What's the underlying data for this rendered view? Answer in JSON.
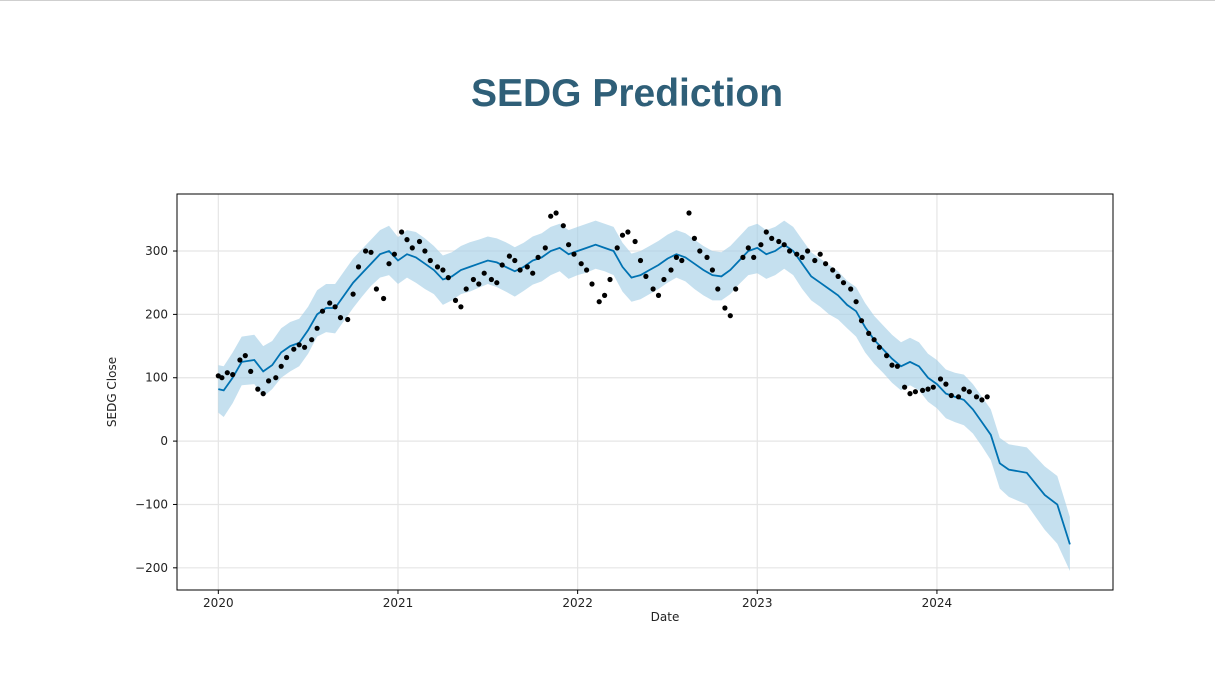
{
  "page": {
    "title": "SEDG Prediction"
  },
  "colors": {
    "title": "#2f5f78",
    "forecast_line": "#0072B2",
    "uncertainty_band": "#a6cfe7",
    "observed_points": "#000000",
    "grid": "#e5e5e5"
  },
  "chart_data": {
    "type": "line",
    "title": "",
    "xlabel": "Date",
    "ylabel": "SEDG Close",
    "x_tick_labels": [
      "2020",
      "2021",
      "2022",
      "2023",
      "2024"
    ],
    "y_tick_labels": [
      "300",
      "200",
      "100",
      "0",
      "−100",
      "−200"
    ],
    "y_ticks": [
      300,
      200,
      100,
      0,
      -100,
      -200
    ],
    "x_ticks": [
      2020.0,
      2021.0,
      2022.0,
      2023.0,
      2024.0
    ],
    "xlim": [
      2019.77,
      2024.98
    ],
    "ylim": [
      -235,
      390
    ],
    "grid": true,
    "series": [
      {
        "kind": "forecast",
        "x": [
          2020.0,
          2020.03,
          2020.08,
          2020.13,
          2020.2,
          2020.25,
          2020.3,
          2020.35,
          2020.4,
          2020.45,
          2020.5,
          2020.55,
          2020.6,
          2020.65,
          2020.7,
          2020.75,
          2020.8,
          2020.85,
          2020.9,
          2020.95,
          2021.0,
          2021.05,
          2021.1,
          2021.15,
          2021.2,
          2021.25,
          2021.3,
          2021.35,
          2021.4,
          2021.45,
          2021.5,
          2021.55,
          2021.6,
          2021.65,
          2021.7,
          2021.75,
          2021.8,
          2021.85,
          2021.9,
          2021.95,
          2022.0,
          2022.05,
          2022.1,
          2022.15,
          2022.2,
          2022.25,
          2022.3,
          2022.35,
          2022.4,
          2022.45,
          2022.5,
          2022.55,
          2022.6,
          2022.65,
          2022.7,
          2022.75,
          2022.8,
          2022.85,
          2022.9,
          2022.95,
          2023.0,
          2023.05,
          2023.1,
          2023.15,
          2023.2,
          2023.25,
          2023.3,
          2023.35,
          2023.4,
          2023.45,
          2023.5,
          2023.55,
          2023.6,
          2023.65,
          2023.7,
          2023.75,
          2023.8,
          2023.85,
          2023.9,
          2023.95,
          2024.0,
          2024.05,
          2024.1,
          2024.15,
          2024.2,
          2024.25,
          2024.3,
          2024.35,
          2024.4,
          2024.5,
          2024.6,
          2024.67,
          2024.74
        ],
        "yhat": [
          82,
          80,
          100,
          125,
          128,
          110,
          120,
          140,
          150,
          155,
          175,
          200,
          210,
          210,
          230,
          250,
          265,
          280,
          295,
          300,
          285,
          295,
          290,
          280,
          270,
          255,
          260,
          270,
          275,
          280,
          285,
          282,
          275,
          268,
          275,
          285,
          290,
          300,
          305,
          295,
          300,
          305,
          310,
          305,
          300,
          275,
          258,
          262,
          270,
          278,
          288,
          295,
          290,
          280,
          270,
          262,
          260,
          270,
          285,
          300,
          305,
          295,
          300,
          310,
          300,
          280,
          260,
          250,
          240,
          230,
          215,
          205,
          180,
          160,
          145,
          130,
          118,
          125,
          118,
          100,
          90,
          75,
          70,
          65,
          50,
          30,
          10,
          -35,
          -45,
          -50,
          -85,
          -100,
          -163
        ],
        "yhat_lower": [
          45,
          38,
          60,
          88,
          90,
          70,
          82,
          100,
          110,
          118,
          138,
          165,
          172,
          170,
          190,
          210,
          228,
          245,
          258,
          262,
          248,
          258,
          250,
          240,
          232,
          215,
          222,
          232,
          236,
          242,
          248,
          243,
          236,
          228,
          237,
          247,
          252,
          262,
          268,
          256,
          262,
          266,
          272,
          268,
          262,
          236,
          220,
          224,
          232,
          240,
          250,
          258,
          252,
          240,
          230,
          222,
          222,
          232,
          248,
          262,
          265,
          256,
          262,
          272,
          262,
          240,
          222,
          212,
          200,
          192,
          178,
          165,
          140,
          122,
          108,
          92,
          80,
          88,
          80,
          62,
          52,
          36,
          30,
          25,
          12,
          -8,
          -30,
          -75,
          -88,
          -100,
          -140,
          -162,
          -205
        ],
        "yhat_upper": [
          120,
          118,
          140,
          165,
          168,
          150,
          158,
          178,
          188,
          193,
          212,
          238,
          248,
          248,
          268,
          288,
          303,
          318,
          333,
          340,
          322,
          333,
          330,
          320,
          308,
          293,
          298,
          308,
          314,
          318,
          323,
          320,
          314,
          306,
          313,
          323,
          328,
          338,
          343,
          333,
          338,
          343,
          348,
          343,
          338,
          313,
          296,
          300,
          308,
          316,
          326,
          333,
          328,
          318,
          308,
          300,
          298,
          308,
          323,
          338,
          343,
          333,
          338,
          348,
          338,
          318,
          298,
          288,
          278,
          268,
          253,
          243,
          218,
          198,
          183,
          168,
          156,
          163,
          156,
          138,
          128,
          113,
          108,
          105,
          90,
          70,
          50,
          5,
          -5,
          -10,
          -40,
          -55,
          -120
        ]
      },
      {
        "kind": "observed",
        "x": [
          2020.0,
          2020.02,
          2020.05,
          2020.08,
          2020.12,
          2020.15,
          2020.18,
          2020.22,
          2020.25,
          2020.28,
          2020.32,
          2020.35,
          2020.38,
          2020.42,
          2020.45,
          2020.48,
          2020.52,
          2020.55,
          2020.58,
          2020.62,
          2020.65,
          2020.68,
          2020.72,
          2020.75,
          2020.78,
          2020.82,
          2020.85,
          2020.88,
          2020.92,
          2020.95,
          2020.98,
          2021.02,
          2021.05,
          2021.08,
          2021.12,
          2021.15,
          2021.18,
          2021.22,
          2021.25,
          2021.28,
          2021.32,
          2021.35,
          2021.38,
          2021.42,
          2021.45,
          2021.48,
          2021.52,
          2021.55,
          2021.58,
          2021.62,
          2021.65,
          2021.68,
          2021.72,
          2021.75,
          2021.78,
          2021.82,
          2021.85,
          2021.88,
          2021.92,
          2021.95,
          2021.98,
          2022.02,
          2022.05,
          2022.08,
          2022.12,
          2022.15,
          2022.18,
          2022.22,
          2022.25,
          2022.28,
          2022.32,
          2022.35,
          2022.38,
          2022.42,
          2022.45,
          2022.48,
          2022.52,
          2022.55,
          2022.58,
          2022.62,
          2022.65,
          2022.68,
          2022.72,
          2022.75,
          2022.78,
          2022.82,
          2022.85,
          2022.88,
          2022.92,
          2022.95,
          2022.98,
          2023.02,
          2023.05,
          2023.08,
          2023.12,
          2023.15,
          2023.18,
          2023.22,
          2023.25,
          2023.28,
          2023.32,
          2023.35,
          2023.38,
          2023.42,
          2023.45,
          2023.48,
          2023.52,
          2023.55,
          2023.58,
          2023.62,
          2023.65,
          2023.68,
          2023.72,
          2023.75,
          2023.78,
          2023.82,
          2023.85,
          2023.88,
          2023.92,
          2023.95,
          2023.98,
          2024.02,
          2024.05,
          2024.08,
          2024.12,
          2024.15,
          2024.18,
          2024.22,
          2024.25,
          2024.28
        ],
        "y": [
          103,
          100,
          108,
          105,
          128,
          135,
          110,
          82,
          75,
          95,
          100,
          118,
          132,
          145,
          152,
          148,
          160,
          178,
          205,
          218,
          212,
          195,
          192,
          232,
          275,
          300,
          298,
          240,
          225,
          280,
          295,
          330,
          318,
          305,
          315,
          300,
          285,
          275,
          270,
          258,
          222,
          212,
          240,
          255,
          248,
          265,
          255,
          250,
          278,
          292,
          285,
          270,
          275,
          265,
          290,
          305,
          355,
          360,
          340,
          310,
          295,
          280,
          270,
          248,
          220,
          230,
          255,
          305,
          325,
          330,
          315,
          285,
          260,
          240,
          230,
          255,
          270,
          290,
          285,
          360,
          320,
          300,
          290,
          270,
          240,
          210,
          198,
          240,
          290,
          305,
          290,
          310,
          330,
          320,
          315,
          310,
          300,
          295,
          290,
          300,
          285,
          295,
          280,
          270,
          260,
          250,
          240,
          220,
          190,
          170,
          160,
          148,
          135,
          120,
          118,
          85,
          75,
          78,
          80,
          82,
          85,
          98,
          90,
          72,
          70,
          82,
          78,
          70,
          65,
          70
        ]
      }
    ]
  }
}
